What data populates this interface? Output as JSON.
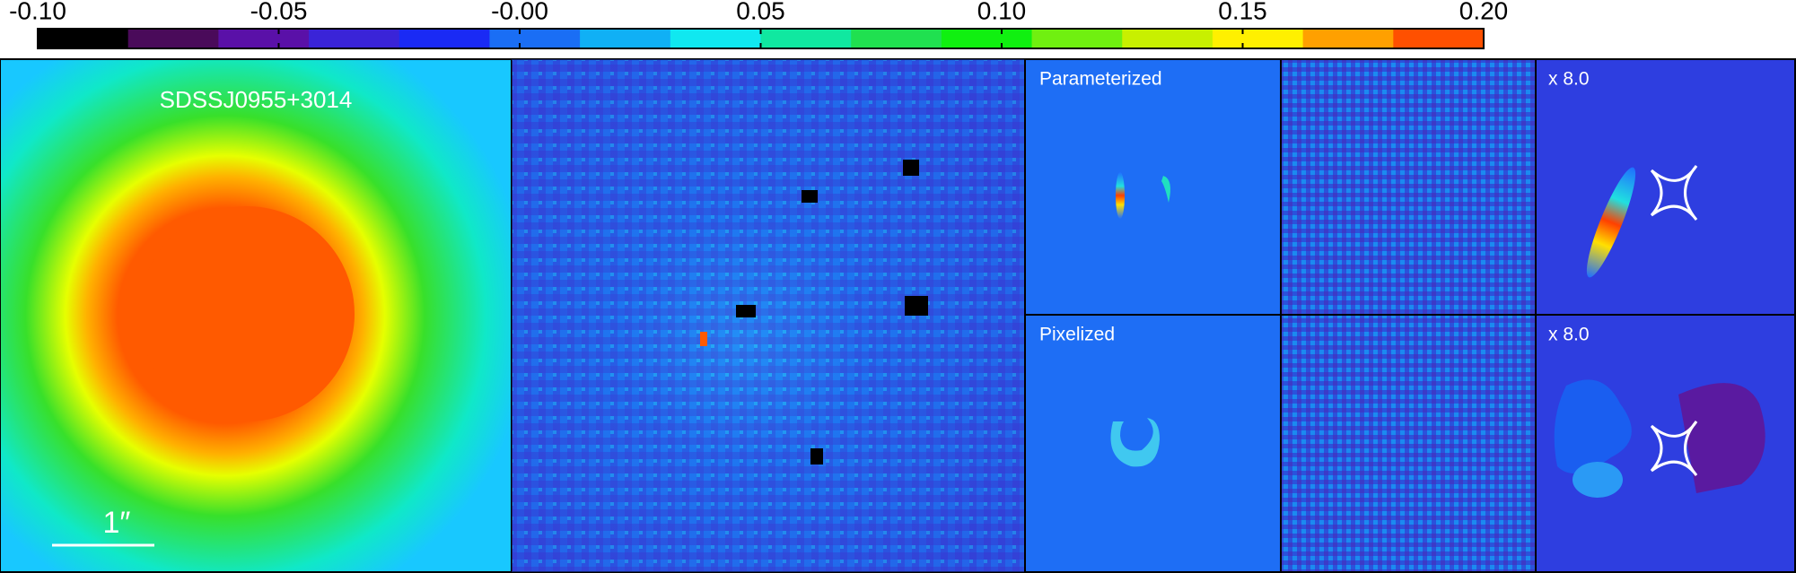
{
  "colorbar": {
    "range": [
      -0.1,
      0.2
    ],
    "ticks": [
      {
        "value": -0.1,
        "label": "-0.10"
      },
      {
        "value": -0.05,
        "label": "-0.05"
      },
      {
        "value": 0,
        "label": "-0.00"
      },
      {
        "value": 0.05,
        "label": "0.05"
      },
      {
        "value": 0.1,
        "label": "0.10"
      },
      {
        "value": 0.15,
        "label": "0.15"
      },
      {
        "value": 0.2,
        "label": "0.20"
      }
    ]
  },
  "panels": {
    "data": {
      "label": "SDSSJ0955+3014",
      "scale": "1″"
    },
    "parameterized": {
      "label": "Parameterized",
      "magnification": "x 8.0"
    },
    "pixelized": {
      "label": "Pixelized",
      "magnification": "x 8.0"
    }
  }
}
